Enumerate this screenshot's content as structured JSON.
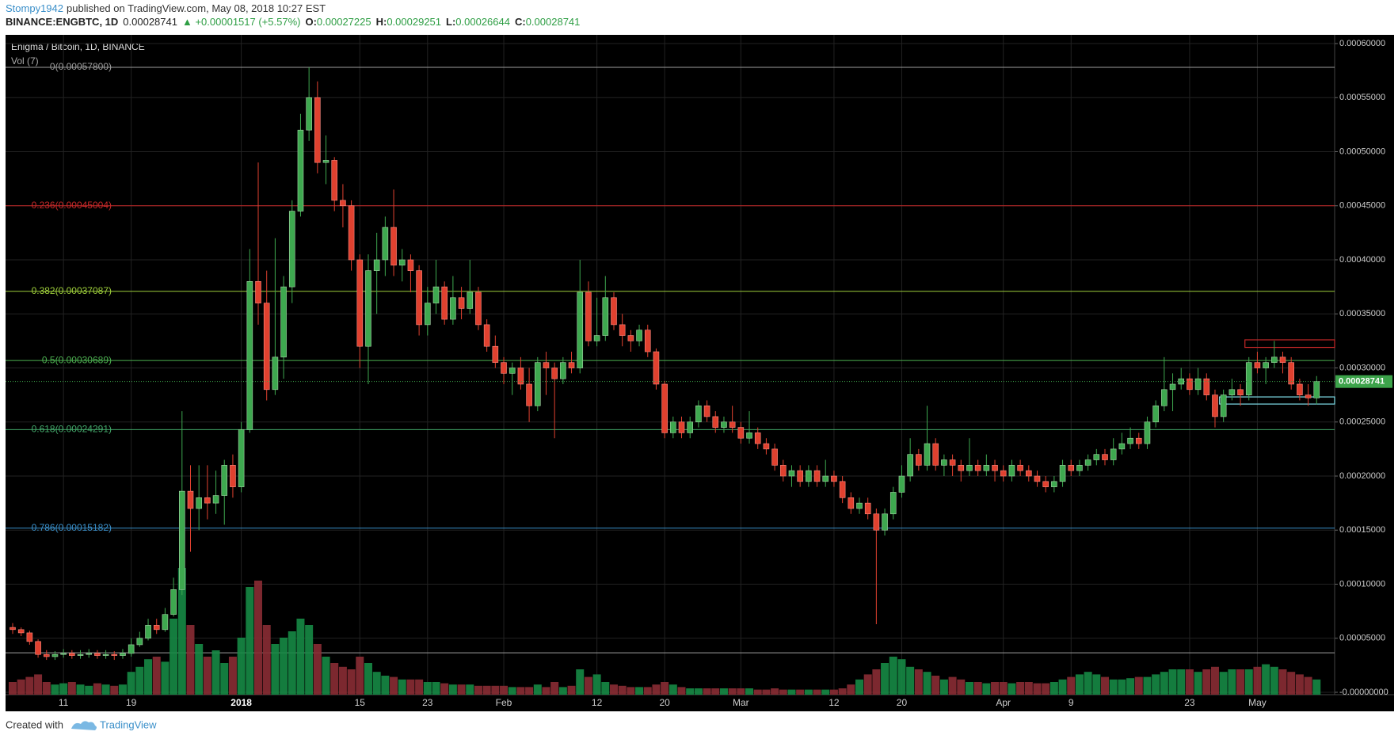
{
  "header": {
    "author": "Stompy1942",
    "published": "published on TradingView.com, May 08, 2018 10:27 EST",
    "symbol": "BINANCE:ENGBTC, 1D",
    "price": "0.00028741",
    "change": "▲ +0.00001517 (+5.57%)",
    "o_label": "O:",
    "o": "0.00027225",
    "h_label": "H:",
    "h": "0.00029251",
    "l_label": "L:",
    "l": "0.00026644",
    "c_label": "C:",
    "c": "0.00028741"
  },
  "footer": {
    "created": "Created with",
    "brand": "TradingView"
  },
  "chart_data": {
    "type": "candlestick",
    "title": "Enigma / Bitcoin, 1D, BINANCE",
    "volume_label": "Vol (7)",
    "up_color": "#3ea84f",
    "down_color": "#e0412f",
    "volume_up_color": "#168a45",
    "volume_down_color": "#8a2c34",
    "grid": true,
    "ylim": [
      0,
      0.0006
    ],
    "yticks": [
      {
        "value": 0.0006,
        "label": "0.00060000"
      },
      {
        "value": 0.00055,
        "label": "0.00055000"
      },
      {
        "value": 0.0005,
        "label": "0.00050000"
      },
      {
        "value": 0.00045,
        "label": "0.00045000"
      },
      {
        "value": 0.0004,
        "label": "0.00040000"
      },
      {
        "value": 0.00035,
        "label": "0.00035000"
      },
      {
        "value": 0.0003,
        "label": "0.00030000"
      },
      {
        "value": 0.00025,
        "label": "0.00025000"
      },
      {
        "value": 0.0002,
        "label": "0.00020000"
      },
      {
        "value": 0.00015,
        "label": "0.00015000"
      },
      {
        "value": 0.0001,
        "label": "0.00010000"
      },
      {
        "value": 5e-05,
        "label": "0.00005000"
      },
      {
        "value": 0,
        "label": "-0.00000000"
      }
    ],
    "categories": [
      null,
      null,
      null,
      null,
      null,
      null,
      "11",
      null,
      null,
      null,
      null,
      null,
      null,
      null,
      "19",
      null,
      null,
      null,
      null,
      null,
      null,
      null,
      null,
      null,
      null,
      null,
      null,
      "2018",
      null,
      null,
      null,
      null,
      null,
      null,
      null,
      null,
      null,
      null,
      null,
      null,
      null,
      "15",
      null,
      null,
      null,
      null,
      null,
      null,
      null,
      "23",
      null,
      null,
      null,
      null,
      null,
      null,
      null,
      null,
      "Feb",
      null,
      null,
      null,
      null,
      null,
      null,
      null,
      null,
      null,
      null,
      "12",
      null,
      null,
      null,
      null,
      null,
      null,
      null,
      "20",
      null,
      null,
      null,
      null,
      null,
      null,
      null,
      null,
      "Mar",
      null,
      null,
      null,
      null,
      null,
      null,
      null,
      null,
      null,
      null,
      "12",
      null,
      null,
      null,
      null,
      null,
      null,
      null,
      "20",
      null,
      null,
      null,
      null,
      null,
      null,
      null,
      null,
      null,
      null,
      null,
      "Apr",
      null,
      null,
      null,
      null,
      null,
      null,
      null,
      "9",
      null,
      null,
      null,
      null,
      null,
      null,
      null,
      null,
      null,
      null,
      null,
      null,
      null,
      "23",
      null,
      null,
      null,
      null,
      null,
      null,
      null,
      "May",
      null,
      null,
      null,
      null,
      null,
      null,
      null
    ],
    "candles": [
      [
        6e-05,
        6.4e-05,
        5.4e-05,
        5.8e-05
      ],
      [
        5.8e-05,
        6e-05,
        5.2e-05,
        5.5e-05
      ],
      [
        5.5e-05,
        5.7e-05,
        4.4e-05,
        4.7e-05
      ],
      [
        4.7e-05,
        4.9e-05,
        3.2e-05,
        3.5e-05
      ],
      [
        3.5e-05,
        3.9e-05,
        3e-05,
        3.3e-05
      ],
      [
        3.3e-05,
        3.8e-05,
        3e-05,
        3.5e-05
      ],
      [
        3.5e-05,
        4e-05,
        3.2e-05,
        3.6e-05
      ],
      [
        3.6e-05,
        3.9e-05,
        3.1e-05,
        3.4e-05
      ],
      [
        3.4e-05,
        3.9e-05,
        3.1e-05,
        3.5e-05
      ],
      [
        3.5e-05,
        4e-05,
        3.2e-05,
        3.6e-05
      ],
      [
        3.6e-05,
        3.9e-05,
        3.1e-05,
        3.4e-05
      ],
      [
        3.4e-05,
        3.9e-05,
        3.1e-05,
        3.5e-05
      ],
      [
        3.5e-05,
        3.8e-05,
        3e-05,
        3.4e-05
      ],
      [
        3.4e-05,
        4e-05,
        3.1e-05,
        3.6e-05
      ],
      [
        3.6e-05,
        5e-05,
        3.3e-05,
        4.4e-05
      ],
      [
        4.4e-05,
        5.6e-05,
        4.2e-05,
        5e-05
      ],
      [
        5e-05,
        6.8e-05,
        4.8e-05,
        6.2e-05
      ],
      [
        6.2e-05,
        6.8e-05,
        5.4e-05,
        5.8e-05
      ],
      [
        5.8e-05,
        7.8e-05,
        5.6e-05,
        7.2e-05
      ],
      [
        7.2e-05,
        0.000106,
        7e-05,
        9.5e-05
      ],
      [
        9.5e-05,
        0.00026,
        9e-05,
        0.000186
      ],
      [
        0.000186,
        0.00021,
        0.00013,
        0.00017
      ],
      [
        0.00017,
        0.00021,
        0.00015,
        0.00018
      ],
      [
        0.00018,
        0.00021,
        0.00016,
        0.000175
      ],
      [
        0.000175,
        0.000205,
        0.000165,
        0.000182
      ],
      [
        0.000182,
        0.000215,
        0.000155,
        0.00021
      ],
      [
        0.00021,
        0.00022,
        0.00018,
        0.00019
      ],
      [
        0.00019,
        0.00025,
        0.000185,
        0.000243
      ],
      [
        0.000243,
        0.00041,
        0.00024,
        0.00038
      ],
      [
        0.00038,
        0.00049,
        0.00034,
        0.00036
      ],
      [
        0.00036,
        0.00039,
        0.00027,
        0.00028
      ],
      [
        0.00028,
        0.00042,
        0.000275,
        0.00031
      ],
      [
        0.00031,
        0.000385,
        0.00029,
        0.000375
      ],
      [
        0.000375,
        0.000455,
        0.00036,
        0.000445
      ],
      [
        0.000445,
        0.000535,
        0.00044,
        0.00052
      ],
      [
        0.00052,
        0.000578,
        0.00051,
        0.00055
      ],
      [
        0.00055,
        0.000565,
        0.00048,
        0.00049
      ],
      [
        0.00049,
        0.000515,
        0.00047,
        0.000492
      ],
      [
        0.000492,
        0.000495,
        0.000445,
        0.000455
      ],
      [
        0.000455,
        0.00047,
        0.00043,
        0.00045
      ],
      [
        0.00045,
        0.000455,
        0.00039,
        0.0004
      ],
      [
        0.0004,
        0.000405,
        0.0003,
        0.00032
      ],
      [
        0.00032,
        0.000405,
        0.000285,
        0.00039
      ],
      [
        0.00039,
        0.000425,
        0.00035,
        0.0004
      ],
      [
        0.0004,
        0.00044,
        0.000385,
        0.00043
      ],
      [
        0.00043,
        0.000465,
        0.000385,
        0.000395
      ],
      [
        0.000395,
        0.00041,
        0.00038,
        0.0004
      ],
      [
        0.0004,
        0.000405,
        0.00037,
        0.00039
      ],
      [
        0.00039,
        0.000395,
        0.00033,
        0.00034
      ],
      [
        0.00034,
        0.000375,
        0.00033,
        0.00036
      ],
      [
        0.00036,
        0.0004,
        0.00035,
        0.000375
      ],
      [
        0.000375,
        0.00038,
        0.00034,
        0.000345
      ],
      [
        0.000345,
        0.000385,
        0.00034,
        0.000365
      ],
      [
        0.000365,
        0.000375,
        0.000345,
        0.000355
      ],
      [
        0.000355,
        0.0004,
        0.00035,
        0.00037
      ],
      [
        0.00037,
        0.000375,
        0.000335,
        0.00034
      ],
      [
        0.00034,
        0.000345,
        0.000315,
        0.00032
      ],
      [
        0.00032,
        0.00033,
        0.0003,
        0.000305
      ],
      [
        0.000305,
        0.00031,
        0.000285,
        0.000295
      ],
      [
        0.000295,
        0.000305,
        0.000275,
        0.0003
      ],
      [
        0.0003,
        0.00031,
        0.00028,
        0.000285
      ],
      [
        0.000285,
        0.0003,
        0.00025,
        0.000265
      ],
      [
        0.000265,
        0.00031,
        0.00026,
        0.000305
      ],
      [
        0.000305,
        0.000315,
        0.000275,
        0.0003
      ],
      [
        0.0003,
        0.000305,
        0.000235,
        0.00029
      ],
      [
        0.00029,
        0.00031,
        0.000285,
        0.000305
      ],
      [
        0.000305,
        0.000315,
        0.000295,
        0.0003
      ],
      [
        0.0003,
        0.0004,
        0.000295,
        0.00037
      ],
      [
        0.00037,
        0.00038,
        0.00032,
        0.000325
      ],
      [
        0.000325,
        0.000365,
        0.00032,
        0.00033
      ],
      [
        0.00033,
        0.000385,
        0.000325,
        0.000365
      ],
      [
        0.000365,
        0.00037,
        0.000335,
        0.00034
      ],
      [
        0.00034,
        0.00035,
        0.00032,
        0.00033
      ],
      [
        0.00033,
        0.000335,
        0.000315,
        0.000325
      ],
      [
        0.000325,
        0.00034,
        0.00032,
        0.000335
      ],
      [
        0.000335,
        0.00034,
        0.00031,
        0.000315
      ],
      [
        0.000315,
        0.000318,
        0.00028,
        0.000285
      ],
      [
        0.000285,
        0.000288,
        0.000235,
        0.00024
      ],
      [
        0.00024,
        0.000255,
        0.000235,
        0.00025
      ],
      [
        0.00025,
        0.000255,
        0.000235,
        0.00024
      ],
      [
        0.00024,
        0.000255,
        0.000235,
        0.00025
      ],
      [
        0.00025,
        0.00027,
        0.000245,
        0.000265
      ],
      [
        0.000265,
        0.00027,
        0.00025,
        0.000255
      ],
      [
        0.000255,
        0.00026,
        0.00024,
        0.000245
      ],
      [
        0.000245,
        0.000255,
        0.00024,
        0.00025
      ],
      [
        0.00025,
        0.000265,
        0.00024,
        0.000245
      ],
      [
        0.000245,
        0.00025,
        0.00023,
        0.000235
      ],
      [
        0.000235,
        0.00026,
        0.00023,
        0.00024
      ],
      [
        0.00024,
        0.000245,
        0.000225,
        0.00023
      ],
      [
        0.00023,
        0.000235,
        0.00022,
        0.000225
      ],
      [
        0.000225,
        0.00023,
        0.000205,
        0.00021
      ],
      [
        0.00021,
        0.000215,
        0.000195,
        0.0002
      ],
      [
        0.0002,
        0.00021,
        0.00019,
        0.000205
      ],
      [
        0.000205,
        0.00021,
        0.00019,
        0.000195
      ],
      [
        0.000195,
        0.00021,
        0.00019,
        0.000205
      ],
      [
        0.000205,
        0.00021,
        0.00019,
        0.000195
      ],
      [
        0.000195,
        0.000215,
        0.00019,
        0.0002
      ],
      [
        0.0002,
        0.000205,
        0.00019,
        0.000195
      ],
      [
        0.000195,
        0.0002,
        0.000175,
        0.00018
      ],
      [
        0.00018,
        0.000185,
        0.000165,
        0.00017
      ],
      [
        0.00017,
        0.00018,
        0.000165,
        0.000175
      ],
      [
        0.000175,
        0.00018,
        0.00016,
        0.000165
      ],
      [
        0.000165,
        0.00017,
        6.3e-05,
        0.00015
      ],
      [
        0.00015,
        0.00017,
        0.000145,
        0.000165
      ],
      [
        0.000165,
        0.00019,
        0.00016,
        0.000185
      ],
      [
        0.000185,
        0.00021,
        0.00018,
        0.0002
      ],
      [
        0.0002,
        0.000235,
        0.000195,
        0.00022
      ],
      [
        0.00022,
        0.000225,
        0.000205,
        0.00021
      ],
      [
        0.00021,
        0.000265,
        0.000205,
        0.00023
      ],
      [
        0.00023,
        0.000235,
        0.000205,
        0.00021
      ],
      [
        0.00021,
        0.00022,
        0.0002,
        0.000215
      ],
      [
        0.000215,
        0.00022,
        0.0002,
        0.00021
      ],
      [
        0.00021,
        0.000215,
        0.000195,
        0.000205
      ],
      [
        0.000205,
        0.000235,
        0.0002,
        0.00021
      ],
      [
        0.00021,
        0.000215,
        0.0002,
        0.000205
      ],
      [
        0.000205,
        0.00022,
        0.0002,
        0.00021
      ],
      [
        0.00021,
        0.000215,
        0.000195,
        0.000205
      ],
      [
        0.000205,
        0.00021,
        0.000195,
        0.0002
      ],
      [
        0.0002,
        0.000215,
        0.000195,
        0.00021
      ],
      [
        0.00021,
        0.000215,
        0.0002,
        0.000205
      ],
      [
        0.000205,
        0.00021,
        0.000195,
        0.0002
      ],
      [
        0.0002,
        0.000205,
        0.00019,
        0.000195
      ],
      [
        0.000195,
        0.0002,
        0.000185,
        0.00019
      ],
      [
        0.00019,
        0.0002,
        0.000185,
        0.000195
      ],
      [
        0.000195,
        0.000215,
        0.00019,
        0.00021
      ],
      [
        0.00021,
        0.000215,
        0.0002,
        0.000205
      ],
      [
        0.000205,
        0.000215,
        0.0002,
        0.00021
      ],
      [
        0.00021,
        0.00022,
        0.000205,
        0.000215
      ],
      [
        0.000215,
        0.000225,
        0.00021,
        0.00022
      ],
      [
        0.00022,
        0.000225,
        0.00021,
        0.000215
      ],
      [
        0.000215,
        0.000235,
        0.00021,
        0.000225
      ],
      [
        0.000225,
        0.00024,
        0.00022,
        0.00023
      ],
      [
        0.00023,
        0.000245,
        0.000225,
        0.000235
      ],
      [
        0.000235,
        0.00024,
        0.000225,
        0.00023
      ],
      [
        0.00023,
        0.000255,
        0.000225,
        0.00025
      ],
      [
        0.00025,
        0.00027,
        0.000245,
        0.000265
      ],
      [
        0.000265,
        0.00031,
        0.00026,
        0.00028
      ],
      [
        0.00028,
        0.000295,
        0.00026,
        0.000285
      ],
      [
        0.000285,
        0.0003,
        0.00028,
        0.00029
      ],
      [
        0.00029,
        0.000295,
        0.000275,
        0.00028
      ],
      [
        0.00028,
        0.0003,
        0.000275,
        0.00029
      ],
      [
        0.00029,
        0.000295,
        0.00027,
        0.000275
      ],
      [
        0.000275,
        0.00028,
        0.000245,
        0.000255
      ],
      [
        0.000255,
        0.00028,
        0.00025,
        0.000275
      ],
      [
        0.000275,
        0.00029,
        0.00027,
        0.00028
      ],
      [
        0.00028,
        0.000285,
        0.000265,
        0.000275
      ],
      [
        0.000275,
        0.00031,
        0.00027,
        0.000305
      ],
      [
        0.000305,
        0.000315,
        0.000295,
        0.0003
      ],
      [
        0.0003,
        0.00031,
        0.000285,
        0.000305
      ],
      [
        0.000305,
        0.000325,
        0.0003,
        0.00031
      ],
      [
        0.00031,
        0.000315,
        0.000295,
        0.000305
      ],
      [
        0.000305,
        0.00031,
        0.00028,
        0.000285
      ],
      [
        0.000285,
        0.00029,
        0.00027,
        0.000275
      ],
      [
        0.000275,
        0.000285,
        0.000265,
        0.00027225
      ],
      [
        0.00027225,
        0.00029251,
        0.00026644,
        0.00028741
      ]
    ],
    "volume": [
      10,
      12,
      14,
      16,
      10,
      8,
      9,
      10,
      8,
      7,
      9,
      8,
      7,
      8,
      18,
      22,
      28,
      30,
      26,
      60,
      100,
      55,
      40,
      30,
      35,
      25,
      30,
      45,
      85,
      90,
      55,
      40,
      45,
      50,
      60,
      55,
      40,
      30,
      25,
      22,
      20,
      30,
      25,
      18,
      15,
      14,
      12,
      12,
      12,
      10,
      10,
      9,
      8,
      8,
      8,
      7,
      7,
      7,
      7,
      6,
      6,
      6,
      8,
      6,
      10,
      6,
      7,
      20,
      14,
      16,
      10,
      8,
      7,
      6,
      6,
      6,
      8,
      10,
      8,
      6,
      5,
      5,
      5,
      5,
      5,
      5,
      5,
      5,
      4,
      4,
      5,
      4,
      4,
      4,
      4,
      4,
      4,
      4,
      5,
      8,
      12,
      16,
      20,
      25,
      30,
      28,
      22,
      20,
      18,
      15,
      12,
      14,
      12,
      10,
      10,
      9,
      10,
      10,
      9,
      10,
      10,
      9,
      9,
      10,
      12,
      14,
      16,
      18,
      16,
      14,
      12,
      12,
      13,
      14,
      14,
      16,
      18,
      20,
      20,
      20,
      18,
      20,
      22,
      18,
      20,
      20,
      20,
      22,
      24,
      22,
      20,
      18,
      16,
      14,
      12
    ],
    "fib_levels": [
      {
        "value": 0.000578,
        "label": "0(0.00057800)",
        "color": "#9e9e9e"
      },
      {
        "value": 0.00045004,
        "label": "0.236(0.00045004)",
        "color": "#c62828"
      },
      {
        "value": 0.00037087,
        "label": "0.382(0.00037087)",
        "color": "#9ccc3a"
      },
      {
        "value": 0.00030689,
        "label": "0.5(0.00030689)",
        "color": "#4caf50"
      },
      {
        "value": 0.00024291,
        "label": "0.618(0.00024291)",
        "color": "#43a86a"
      },
      {
        "value": 0.00015182,
        "label": "0.786(0.00015182)",
        "color": "#3a8fc9"
      },
      {
        "value": 3.65e-05,
        "color": "#9e9e9e"
      }
    ],
    "boxes": [
      {
        "start": 146,
        "ylim": [
          0.000319,
          0.000326
        ],
        "color": "#c62828"
      },
      {
        "start": 143,
        "ylim": [
          0.0002666,
          0.0002732
        ],
        "color": "#80deea"
      }
    ],
    "last_price": 0.00028741,
    "last_price_color": "#3ca34a"
  }
}
